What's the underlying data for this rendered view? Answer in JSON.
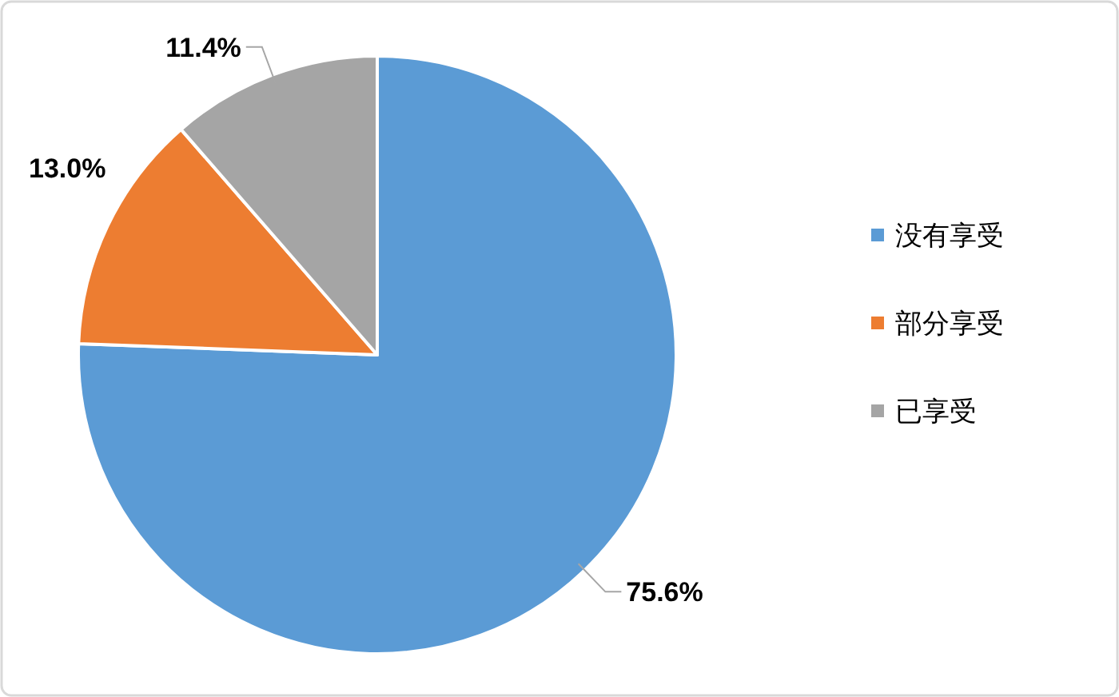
{
  "chart_data": {
    "type": "pie",
    "categories": [
      "没有享受",
      "部分享受",
      "已享受"
    ],
    "values": [
      75.6,
      13.0,
      11.4
    ],
    "colors": [
      "#5b9bd5",
      "#ed7d31",
      "#a5a5a5"
    ],
    "value_labels": [
      "75.6%",
      "13.0%",
      "11.4%"
    ],
    "legend": "right"
  }
}
